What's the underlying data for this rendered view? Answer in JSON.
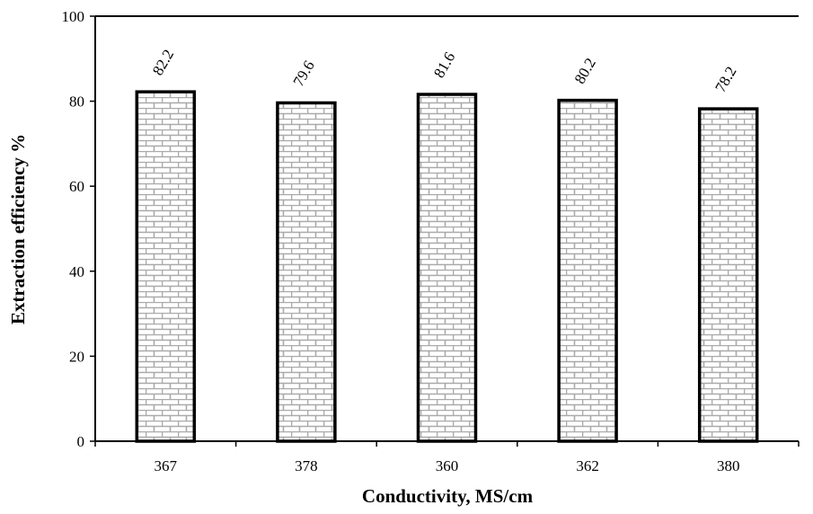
{
  "chart_data": {
    "type": "bar",
    "categories": [
      "367",
      "378",
      "360",
      "362",
      "380"
    ],
    "values": [
      82.2,
      79.6,
      81.6,
      80.2,
      78.2
    ],
    "data_labels": [
      "82.2",
      "79.6",
      "81.6",
      "80.2",
      "78.2"
    ],
    "title": "",
    "xlabel": "Conductivity, MS/cm",
    "ylabel": "Extraction efficiency %",
    "ylim": [
      0,
      100
    ],
    "yticks": [
      "0",
      "20",
      "40",
      "60",
      "80",
      "100"
    ],
    "grid": false,
    "legend": "none",
    "bar_fill_pattern": "brick",
    "colors": {
      "bar_edge": "#000000",
      "brick_mortar": "#aaaaaa",
      "bar_bg": "#ffffff"
    }
  }
}
